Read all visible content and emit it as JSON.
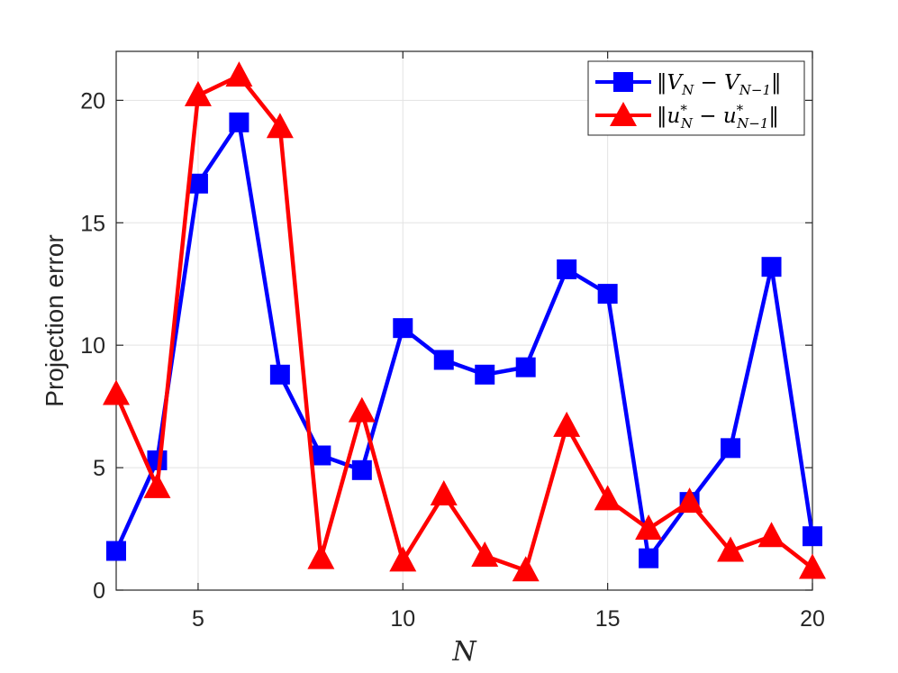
{
  "chart_data": {
    "type": "line",
    "xlabel": "N",
    "ylabel": "Projection error",
    "xlim": [
      3,
      20
    ],
    "ylim": [
      0,
      22
    ],
    "x_ticks": [
      5,
      10,
      15,
      20
    ],
    "y_ticks": [
      0,
      5,
      10,
      15,
      20
    ],
    "grid": true,
    "legend_position": "top-right",
    "x": [
      3,
      4,
      5,
      6,
      7,
      8,
      9,
      10,
      11,
      12,
      13,
      14,
      15,
      16,
      17,
      18,
      19,
      20
    ],
    "series": [
      {
        "name": "‖V_N − V_{N−1}‖",
        "color": "#0000ff",
        "marker": "square",
        "values": [
          1.6,
          5.3,
          16.6,
          19.1,
          8.8,
          5.5,
          4.9,
          10.7,
          9.4,
          8.8,
          9.1,
          13.1,
          12.1,
          1.3,
          3.6,
          5.8,
          13.2,
          2.2
        ]
      },
      {
        "name": "‖u*_N − u*_{N−1}‖",
        "color": "#ff0000",
        "marker": "triangle",
        "values": [
          8.0,
          4.2,
          20.2,
          21.0,
          18.9,
          1.3,
          7.3,
          1.2,
          3.9,
          1.4,
          0.8,
          6.7,
          3.7,
          2.5,
          3.6,
          1.6,
          2.2,
          0.9
        ]
      }
    ]
  },
  "legend": {
    "entries": [
      {
        "base": "‖V",
        "sub": "N",
        "mid": " − V",
        "sub2": "N−1",
        "end": "‖"
      },
      {
        "base": "‖u",
        "sup": "*",
        "sub": "N",
        "mid": " − u",
        "sup2": "*",
        "sub2": "N−1",
        "end": "‖"
      }
    ]
  }
}
